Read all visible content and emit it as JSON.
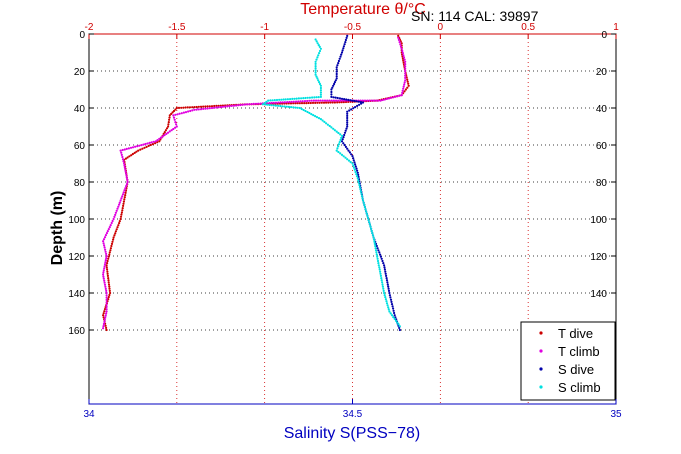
{
  "header": {
    "top_title": "Temperature θ/°C",
    "annotation": "SN: 114  CAL: 39897"
  },
  "chart_data": {
    "type": "scatter",
    "title": "Temperature θ/°C",
    "annotation": "SN: 114  CAL: 39897",
    "ylabel": "Depth (m)",
    "xlabel": "Salinity S(PSS−78)",
    "xlabel_top": "Temperature θ/°C",
    "ylim": [
      0,
      200
    ],
    "y_reversed": true,
    "xlim_top": [
      -2,
      1
    ],
    "xlim_bottom": [
      34,
      35
    ],
    "yticks": [
      0,
      20,
      40,
      60,
      80,
      100,
      120,
      140,
      160
    ],
    "ytick_labels": [
      "0",
      "20",
      "40",
      "60",
      "80",
      "100",
      "120",
      "140",
      "160"
    ],
    "xticks_top": [
      -2,
      -1.5,
      -1,
      -0.5,
      0,
      0.5,
      1
    ],
    "xtick_labels_top": [
      "-2",
      "-1.5",
      "-1",
      "-0.5",
      "0",
      "0.5",
      "1"
    ],
    "xticks_bottom": [
      34,
      34.5,
      35
    ],
    "xtick_labels_bottom": [
      "34",
      "34.5",
      "35"
    ],
    "grid": true,
    "grid_style": "dotted",
    "legend_position": "bottom-right",
    "colors": {
      "temperature_axis": "#d00000",
      "salinity_axis": "#0000c0"
    },
    "series": [
      {
        "name": "T dive",
        "axis": "top",
        "color": "#cc0000",
        "points": [
          [
            -0.24,
            1
          ],
          [
            -0.22,
            5
          ],
          [
            -0.22,
            10
          ],
          [
            -0.2,
            20
          ],
          [
            -0.18,
            28
          ],
          [
            -0.22,
            33
          ],
          [
            -0.36,
            36
          ],
          [
            -0.6,
            37
          ],
          [
            -1.1,
            38
          ],
          [
            -1.5,
            40
          ],
          [
            -1.54,
            44
          ],
          [
            -1.55,
            50
          ],
          [
            -1.6,
            58
          ],
          [
            -1.72,
            63
          ],
          [
            -1.8,
            68
          ],
          [
            -1.78,
            80
          ],
          [
            -1.82,
            100
          ],
          [
            -1.86,
            110
          ],
          [
            -1.9,
            125
          ],
          [
            -1.88,
            140
          ],
          [
            -1.92,
            152
          ],
          [
            -1.9,
            160
          ]
        ]
      },
      {
        "name": "T climb",
        "axis": "top",
        "color": "#e000e0",
        "points": [
          [
            -1.92,
            159
          ],
          [
            -1.9,
            150
          ],
          [
            -1.9,
            140
          ],
          [
            -1.92,
            130
          ],
          [
            -1.9,
            120
          ],
          [
            -1.92,
            112
          ],
          [
            -1.86,
            100
          ],
          [
            -1.82,
            90
          ],
          [
            -1.78,
            80
          ],
          [
            -1.8,
            70
          ],
          [
            -1.82,
            63
          ],
          [
            -1.62,
            58
          ],
          [
            -1.5,
            50
          ],
          [
            -1.52,
            44
          ],
          [
            -1.4,
            41
          ],
          [
            -1.1,
            38
          ],
          [
            -0.72,
            36
          ],
          [
            -0.34,
            36
          ],
          [
            -0.22,
            33
          ],
          [
            -0.2,
            25
          ],
          [
            -0.2,
            15
          ],
          [
            -0.22,
            8
          ],
          [
            -0.24,
            2
          ]
        ]
      },
      {
        "name": "S dive",
        "axis": "bottom",
        "color": "#0000aa",
        "points": [
          [
            34.49,
            1
          ],
          [
            34.48,
            10
          ],
          [
            34.47,
            18
          ],
          [
            34.47,
            24
          ],
          [
            34.46,
            30
          ],
          [
            34.46,
            34
          ],
          [
            34.52,
            37
          ],
          [
            34.49,
            42
          ],
          [
            34.49,
            50
          ],
          [
            34.48,
            58
          ],
          [
            34.5,
            66
          ],
          [
            34.51,
            75
          ],
          [
            34.52,
            90
          ],
          [
            34.54,
            110
          ],
          [
            34.56,
            125
          ],
          [
            34.57,
            140
          ],
          [
            34.58,
            152
          ],
          [
            34.59,
            160
          ]
        ]
      },
      {
        "name": "S climb",
        "axis": "bottom",
        "color": "#00e0e0",
        "points": [
          [
            34.59,
            158
          ],
          [
            34.57,
            150
          ],
          [
            34.56,
            140
          ],
          [
            34.55,
            125
          ],
          [
            34.54,
            110
          ],
          [
            34.52,
            90
          ],
          [
            34.51,
            78
          ],
          [
            34.5,
            70
          ],
          [
            34.47,
            63
          ],
          [
            34.48,
            55
          ],
          [
            34.44,
            46
          ],
          [
            34.4,
            40
          ],
          [
            34.33,
            38
          ],
          [
            34.34,
            36
          ],
          [
            34.44,
            34
          ],
          [
            34.44,
            28
          ],
          [
            34.43,
            22
          ],
          [
            34.43,
            15
          ],
          [
            34.44,
            8
          ],
          [
            34.43,
            3
          ]
        ]
      }
    ]
  }
}
